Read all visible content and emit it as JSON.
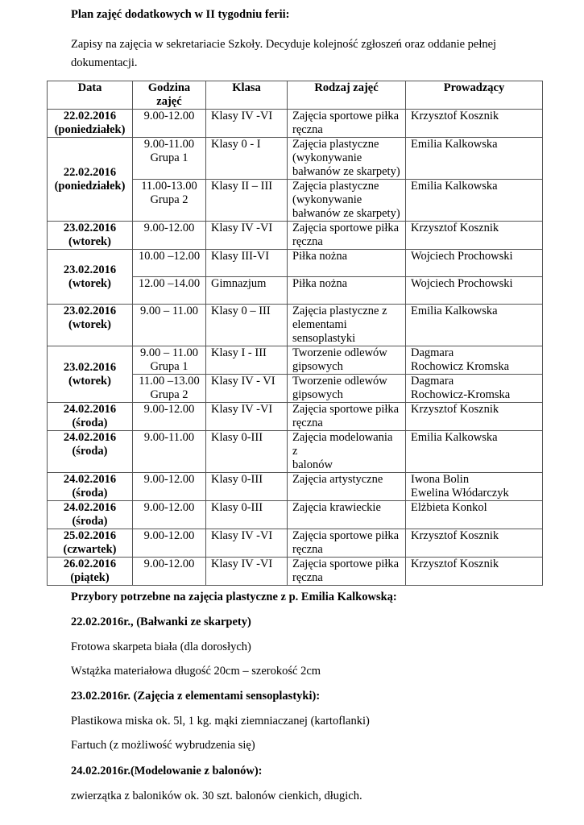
{
  "title": "Plan zajęć dodatkowych w II tygodniu ferii:",
  "intro_line1": "Zapisy na zajęcia w sekretariacie Szkoły. Decyduje kolejność zgłoszeń oraz oddanie pełnej",
  "intro_line2": "dokumentacji.",
  "table": {
    "headers": [
      "Data",
      "Godzina\nzajęć",
      "Klasa",
      "Rodzaj zajęć",
      "Prowadzący"
    ],
    "groups": [
      {
        "date": "22.02.2016\n(poniedziałek)",
        "sessions": [
          {
            "time": "9.00-12.00",
            "klasa": "Klasy IV -VI",
            "rodzaj": "Zajęcia sportowe piłka\nręczna",
            "prowadzacy": "Krzysztof Kosznik"
          }
        ]
      },
      {
        "date": "22.02.2016\n(poniedziałek)",
        "sessions": [
          {
            "time": "9.00-11.00\nGrupa 1",
            "klasa": "Klasy 0 - I",
            "rodzaj": "Zajęcia plastyczne\n(wykonywanie\nbałwanów ze skarpety)",
            "prowadzacy": "Emilia Kalkowska"
          },
          {
            "time": "11.00-13.00\nGrupa 2",
            "klasa": "Klasy II – III",
            "rodzaj": "Zajęcia plastyczne\n(wykonywanie\nbałwanów ze skarpety)",
            "prowadzacy": "Emilia Kalkowska"
          }
        ]
      },
      {
        "date": "23.02.2016\n(wtorek)",
        "sessions": [
          {
            "time": "9.00-12.00",
            "klasa": "Klasy IV -VI",
            "rodzaj": "Zajęcia sportowe piłka\nręczna",
            "prowadzacy": "Krzysztof Kosznik"
          }
        ]
      },
      {
        "date": "23.02.2016\n(wtorek)",
        "sessions": [
          {
            "time": "10.00 –12.00",
            "klasa": "Klasy III-VI",
            "rodzaj": "Piłka nożna",
            "prowadzacy": "Wojciech Prochowski",
            "lines": 2
          },
          {
            "time": "12.00 –14.00",
            "klasa": "Gimnazjum",
            "rodzaj": "Piłka nożna",
            "prowadzacy": "Wojciech Prochowski",
            "lines": 2
          }
        ]
      },
      {
        "date": "23.02.2016\n(wtorek)",
        "sessions": [
          {
            "time": "9.00 – 11.00",
            "klasa": "Klasy 0 – III",
            "rodzaj": "Zajęcia plastyczne z\nelementami\nsensoplastyki",
            "prowadzacy": "Emilia Kalkowska"
          }
        ]
      },
      {
        "date": "23.02.2016\n(wtorek)",
        "sessions": [
          {
            "time": "9.00 – 11.00\nGrupa 1",
            "klasa": "Klasy I - III",
            "rodzaj": "Tworzenie odlewów\ngipsowych",
            "prowadzacy": "Dagmara\nRochowicz Kromska"
          },
          {
            "time": "11.00 –13.00\nGrupa 2",
            "klasa": "Klasy IV - VI",
            "rodzaj": "Tworzenie odlewów\ngipsowych",
            "prowadzacy": "Dagmara\nRochowicz-Kromska"
          }
        ]
      },
      {
        "date": "24.02.2016\n(środa)",
        "sessions": [
          {
            "time": "9.00-12.00",
            "klasa": "Klasy IV -VI",
            "rodzaj": "Zajęcia sportowe piłka\nręczna",
            "prowadzacy": "Krzysztof Kosznik"
          }
        ]
      },
      {
        "date": "24.02.2016\n(środa)",
        "sessions": [
          {
            "time": "9.00-11.00",
            "klasa": "Klasy 0-III",
            "rodzaj": "Zajęcia modelowania z\nbalonów",
            "prowadzacy": "Emilia Kalkowska"
          }
        ]
      },
      {
        "date": "24.02.2016\n(środa)",
        "sessions": [
          {
            "time": "9.00-12.00",
            "klasa": "Klasy 0-III",
            "rodzaj": "Zajęcia artystyczne",
            "prowadzacy": "Iwona Bolin\nEwelina Włódarczyk"
          }
        ]
      },
      {
        "date": "24.02.2016\n(środa)",
        "sessions": [
          {
            "time": "9.00-12.00",
            "klasa": "Klasy 0-III",
            "rodzaj": "Zajęcia krawieckie",
            "prowadzacy": "Elżbieta Konkol"
          }
        ]
      },
      {
        "date": "25.02.2016\n(czwartek)",
        "sessions": [
          {
            "time": "9.00-12.00",
            "klasa": "Klasy IV -VI",
            "rodzaj": "Zajęcia sportowe piłka\nręczna",
            "prowadzacy": "Krzysztof Kosznik"
          }
        ]
      },
      {
        "date": "26.02.2016\n(piątek)",
        "sessions": [
          {
            "time": "9.00-12.00",
            "klasa": "Klasy IV -VI",
            "rodzaj": "Zajęcia sportowe piłka\nręczna",
            "prowadzacy": "Krzysztof Kosznik"
          }
        ]
      }
    ]
  },
  "supplies": {
    "heading": "Przybory potrzebne na zajęcia plastyczne z p. Emilia Kalkowską:",
    "s1_heading": "22.02.2016r., (Bałwanki ze skarpety)",
    "s1_item1": "Frotowa skarpeta biała (dla dorosłych)",
    "s1_item2": "Wstążka materiałowa długość 20cm – szerokość 2cm",
    "s2_heading": "23.02.2016r. (Zajęcia z elementami sensoplastyki):",
    "s2_item1": "Plastikowa miska ok. 5l, 1 kg. mąki ziemniaczanej (kartoflanki)",
    "s2_item2": "Fartuch (z możliwość wybrudzenia się)",
    "s3_heading": "24.02.2016r.(Modelowanie z balonów):",
    "s3_item1": "zwierzątka z baloników ok. 30 szt. balonów cienkich, długich."
  }
}
